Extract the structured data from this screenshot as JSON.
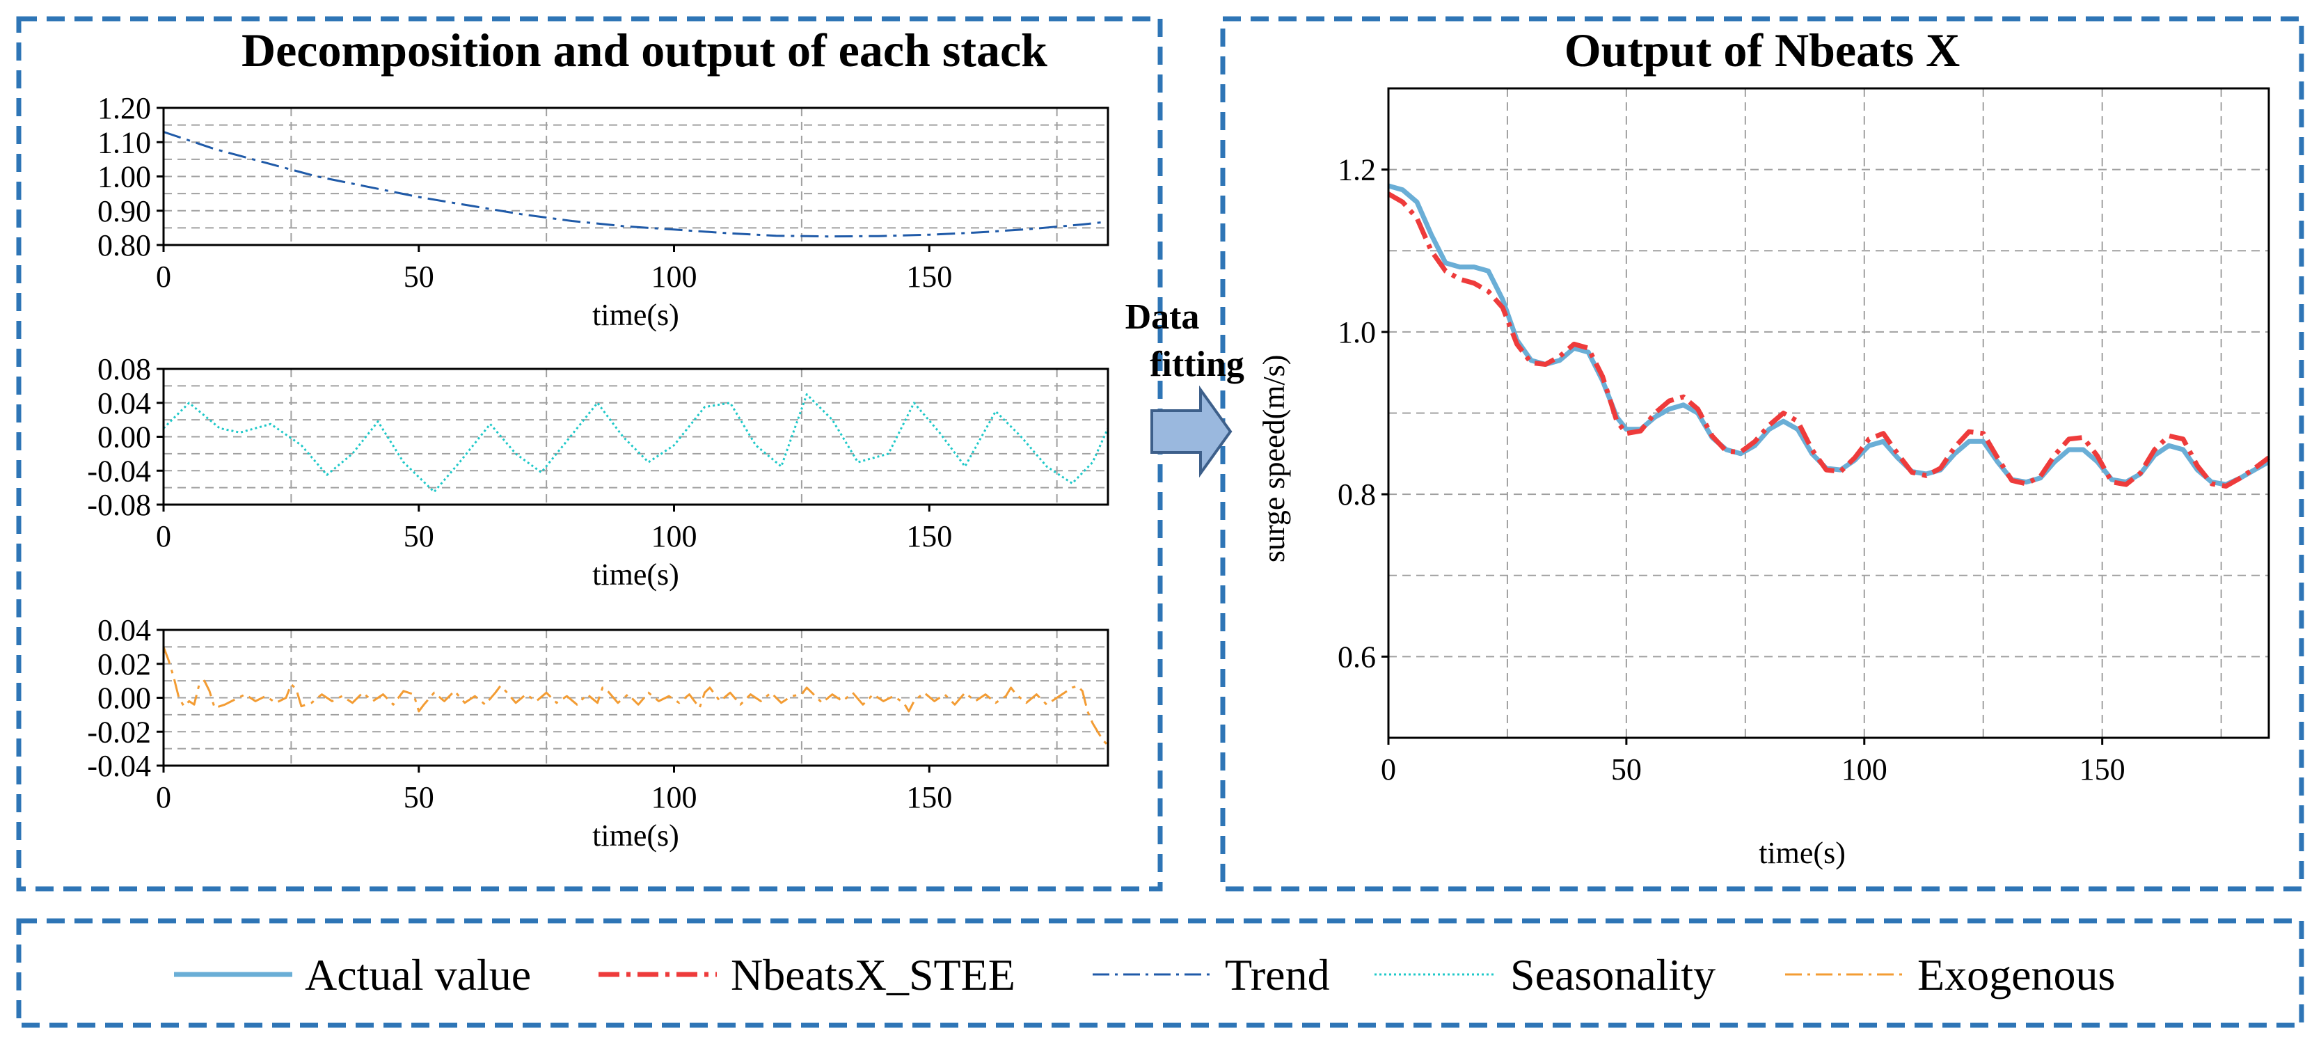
{
  "colors": {
    "frame": "#2e75b6",
    "actual": "#6aaed6",
    "nbeats": "#ee3b3b",
    "trend": "#1f5aa8",
    "seasonality": "#1ec8c8",
    "exogenous": "#f39c33",
    "arrow_fill": "#9ab8de",
    "arrow_stroke": "#3d5f8a"
  },
  "left_panel": {
    "title": "Decomposition and output of each stack"
  },
  "right_panel": {
    "title": "Output of Nbeats X"
  },
  "arrow": {
    "label_line1": "Data",
    "label_line2": "fitting"
  },
  "legend": {
    "actual": "Actual value",
    "nbeats": "NbeatsX_STEE",
    "trend": "Trend",
    "seasonality": "Seasonality",
    "exogenous": "Exogenous"
  },
  "chart_data": [
    {
      "id": "trend",
      "type": "line",
      "title": "",
      "xlabel": "time(s)",
      "ylabel": "",
      "xlim": [
        0,
        185
      ],
      "ylim": [
        0.8,
        1.2
      ],
      "xticks": [
        0,
        50,
        100,
        150
      ],
      "xtick_labels": [
        "0",
        "50",
        "100",
        "150"
      ],
      "yticks": [
        0.8,
        0.9,
        1.0,
        1.1,
        1.2
      ],
      "ytick_labels": [
        "0.80",
        "0.90",
        "1.00",
        "1.10",
        "1.20"
      ],
      "series": [
        {
          "name": "Trend",
          "style": "dashdot",
          "x": [
            0,
            10,
            20,
            30,
            40,
            50,
            60,
            70,
            80,
            90,
            100,
            110,
            120,
            130,
            140,
            150,
            160,
            170,
            180,
            185
          ],
          "y": [
            1.13,
            1.08,
            1.04,
            1.0,
            0.97,
            0.94,
            0.915,
            0.89,
            0.87,
            0.855,
            0.845,
            0.835,
            0.827,
            0.825,
            0.826,
            0.83,
            0.837,
            0.847,
            0.86,
            0.868
          ]
        }
      ]
    },
    {
      "id": "seasonality",
      "type": "line",
      "title": "",
      "xlabel": "time(s)",
      "ylabel": "",
      "xlim": [
        0,
        185
      ],
      "ylim": [
        -0.08,
        0.08
      ],
      "xticks": [
        0,
        50,
        100,
        150
      ],
      "xtick_labels": [
        "0",
        "50",
        "100",
        "150"
      ],
      "yticks": [
        -0.08,
        -0.04,
        0.0,
        0.04,
        0.08
      ],
      "ytick_labels": [
        "-0.08",
        "-0.04",
        "0.00",
        "0.04",
        "0.08"
      ],
      "series": [
        {
          "name": "Seasonality",
          "style": "dotted",
          "x": [
            0,
            5,
            11,
            15,
            21,
            27,
            32,
            37,
            42,
            47,
            53,
            58,
            64,
            69,
            74,
            79,
            85,
            90,
            95,
            100,
            106,
            111,
            116,
            121,
            126,
            131,
            136,
            142,
            147,
            152,
            157,
            163,
            168,
            173,
            178,
            182,
            185
          ],
          "y": [
            0.01,
            0.04,
            0.01,
            0.005,
            0.015,
            -0.01,
            -0.045,
            -0.02,
            0.018,
            -0.03,
            -0.065,
            -0.03,
            0.015,
            -0.02,
            -0.042,
            -0.005,
            0.04,
            0.0,
            -0.03,
            -0.01,
            0.035,
            0.04,
            -0.01,
            -0.035,
            0.05,
            0.02,
            -0.03,
            -0.02,
            0.04,
            0.005,
            -0.035,
            0.03,
            0.0,
            -0.035,
            -0.055,
            -0.03,
            0.01
          ]
        }
      ]
    },
    {
      "id": "exogenous",
      "type": "line",
      "title": "",
      "xlabel": "time(s)",
      "ylabel": "",
      "xlim": [
        0,
        185
      ],
      "ylim": [
        -0.04,
        0.04
      ],
      "xticks": [
        0,
        50,
        100,
        150
      ],
      "xtick_labels": [
        "0",
        "50",
        "100",
        "150"
      ],
      "yticks": [
        -0.04,
        -0.02,
        0.0,
        0.02,
        0.04
      ],
      "ytick_labels": [
        "-0.04",
        "-0.02",
        "0.00",
        "0.02",
        "0.04"
      ],
      "series": [
        {
          "name": "Exogenous",
          "style": "dashdot",
          "x": [
            0,
            1,
            2,
            3,
            4,
            5,
            6,
            7,
            8,
            9,
            10,
            12,
            14,
            16,
            18,
            20,
            22,
            24,
            25,
            26,
            27,
            29,
            31,
            33,
            35,
            37,
            39,
            41,
            43,
            45,
            47,
            49,
            50,
            51,
            53,
            55,
            57,
            59,
            61,
            63,
            65,
            66,
            67,
            69,
            71,
            73,
            75,
            77,
            79,
            81,
            83,
            85,
            86,
            87,
            89,
            91,
            93,
            95,
            97,
            99,
            101,
            103,
            105,
            106,
            107,
            109,
            111,
            113,
            115,
            117,
            119,
            121,
            123,
            125,
            126,
            127,
            129,
            131,
            133,
            135,
            137,
            139,
            141,
            143,
            145,
            146,
            147,
            149,
            151,
            153,
            155,
            157,
            159,
            161,
            163,
            165,
            166,
            167,
            169,
            171,
            173,
            175,
            177,
            178,
            179,
            180,
            181,
            182,
            183,
            184,
            185
          ],
          "y": [
            0.03,
            0.022,
            0.012,
            0.0,
            -0.005,
            -0.002,
            -0.004,
            0.008,
            0.01,
            0.004,
            -0.006,
            -0.004,
            -0.001,
            0.002,
            -0.002,
            0.001,
            -0.003,
            0.0,
            0.008,
            0.005,
            -0.005,
            -0.003,
            0.002,
            -0.002,
            0.001,
            -0.003,
            0.003,
            -0.002,
            0.002,
            -0.004,
            0.004,
            0.002,
            -0.008,
            -0.004,
            0.003,
            -0.002,
            0.004,
            -0.003,
            0.001,
            -0.004,
            0.003,
            0.007,
            0.004,
            -0.003,
            0.002,
            -0.002,
            0.003,
            -0.003,
            0.001,
            -0.004,
            0.002,
            -0.003,
            0.006,
            0.004,
            -0.003,
            0.002,
            -0.004,
            0.003,
            -0.002,
            0.001,
            -0.003,
            0.002,
            -0.006,
            0.003,
            0.006,
            -0.002,
            0.003,
            -0.004,
            0.002,
            -0.002,
            0.003,
            -0.003,
            0.001,
            0.002,
            0.006,
            0.003,
            -0.003,
            0.002,
            -0.002,
            0.003,
            -0.004,
            0.002,
            -0.002,
            0.001,
            -0.003,
            -0.008,
            -0.002,
            0.003,
            -0.002,
            0.002,
            -0.004,
            0.003,
            -0.002,
            0.002,
            -0.003,
            0.001,
            0.006,
            0.002,
            -0.003,
            0.002,
            -0.004,
            0.0,
            0.004,
            0.006,
            0.007,
            0.004,
            -0.008,
            -0.015,
            -0.02,
            -0.025,
            -0.028
          ]
        }
      ]
    },
    {
      "id": "output",
      "type": "line",
      "title": "Output of Nbeats X",
      "xlabel": "time(s)",
      "ylabel": "surge speed(m/s)",
      "xlim": [
        0,
        185
      ],
      "ylim": [
        0.5,
        1.3
      ],
      "xticks": [
        0,
        50,
        100,
        150
      ],
      "xtick_labels": [
        "0",
        "50",
        "100",
        "150"
      ],
      "yticks": [
        0.6,
        0.8,
        1.0,
        1.2
      ],
      "ytick_labels": [
        "0.6",
        "0.8",
        "1.0",
        "1.2"
      ],
      "grid_x": [
        0,
        25,
        50,
        75,
        100,
        125,
        150,
        175
      ],
      "grid_y": [
        0.6,
        0.7,
        0.8,
        0.9,
        1.0,
        1.1,
        1.2
      ],
      "series": [
        {
          "name": "Actual value",
          "style": "solid",
          "x": [
            0,
            3,
            6,
            9,
            12,
            15,
            18,
            21,
            24,
            27,
            30,
            33,
            36,
            39,
            42,
            45,
            48,
            50,
            53,
            56,
            59,
            62,
            65,
            68,
            71,
            74,
            77,
            80,
            83,
            86,
            89,
            92,
            95,
            98,
            101,
            104,
            107,
            110,
            113,
            116,
            119,
            122,
            125,
            128,
            131,
            134,
            137,
            140,
            143,
            146,
            149,
            152,
            155,
            158,
            161,
            164,
            167,
            170,
            173,
            176,
            179,
            182,
            185
          ],
          "y": [
            1.18,
            1.175,
            1.16,
            1.12,
            1.085,
            1.08,
            1.08,
            1.075,
            1.04,
            0.99,
            0.965,
            0.96,
            0.965,
            0.98,
            0.975,
            0.94,
            0.895,
            0.88,
            0.88,
            0.895,
            0.905,
            0.91,
            0.9,
            0.87,
            0.855,
            0.85,
            0.86,
            0.88,
            0.89,
            0.88,
            0.85,
            0.832,
            0.83,
            0.842,
            0.86,
            0.865,
            0.845,
            0.828,
            0.825,
            0.83,
            0.85,
            0.865,
            0.865,
            0.84,
            0.818,
            0.815,
            0.82,
            0.84,
            0.855,
            0.855,
            0.84,
            0.818,
            0.815,
            0.825,
            0.848,
            0.86,
            0.855,
            0.83,
            0.815,
            0.812,
            0.82,
            0.83,
            0.84
          ]
        },
        {
          "name": "NbeatsX_STEE",
          "style": "dashdot",
          "x": [
            0,
            3,
            6,
            9,
            12,
            15,
            18,
            21,
            24,
            27,
            30,
            33,
            36,
            39,
            42,
            45,
            48,
            50,
            53,
            56,
            59,
            62,
            65,
            68,
            71,
            74,
            77,
            80,
            83,
            86,
            89,
            92,
            95,
            98,
            101,
            104,
            107,
            110,
            113,
            116,
            119,
            122,
            125,
            128,
            131,
            134,
            137,
            140,
            143,
            146,
            149,
            152,
            155,
            158,
            161,
            164,
            167,
            170,
            173,
            176,
            179,
            182,
            185
          ],
          "y": [
            1.17,
            1.16,
            1.14,
            1.1,
            1.075,
            1.065,
            1.06,
            1.05,
            1.03,
            0.985,
            0.962,
            0.96,
            0.97,
            0.985,
            0.98,
            0.945,
            0.89,
            0.875,
            0.878,
            0.9,
            0.915,
            0.92,
            0.905,
            0.872,
            0.853,
            0.852,
            0.865,
            0.885,
            0.9,
            0.89,
            0.855,
            0.83,
            0.828,
            0.845,
            0.868,
            0.875,
            0.85,
            0.827,
            0.823,
            0.832,
            0.858,
            0.877,
            0.875,
            0.845,
            0.817,
            0.813,
            0.822,
            0.848,
            0.868,
            0.87,
            0.847,
            0.815,
            0.812,
            0.826,
            0.855,
            0.872,
            0.868,
            0.835,
            0.813,
            0.81,
            0.82,
            0.832,
            0.845
          ]
        }
      ]
    }
  ]
}
